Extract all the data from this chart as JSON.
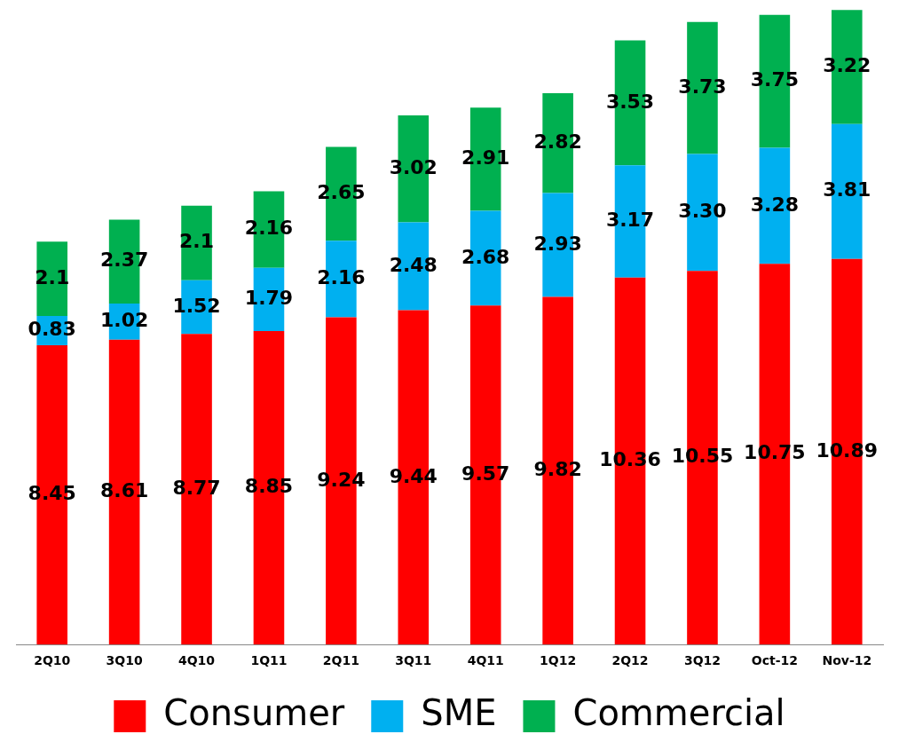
{
  "chart_data": {
    "type": "bar",
    "stacked": true,
    "legend": "bottom",
    "grid": false,
    "categories": [
      "2Q10",
      "3Q10",
      "4Q10",
      "1Q11",
      "2Q11",
      "3Q11",
      "4Q11",
      "1Q12",
      "2Q12",
      "3Q12",
      "Oct-12",
      "Nov-12"
    ],
    "series": [
      {
        "name": "Consumer",
        "color": "#ff0000",
        "values": [
          8.45,
          8.61,
          8.77,
          8.85,
          9.24,
          9.44,
          9.57,
          9.82,
          10.36,
          10.55,
          10.75,
          10.89
        ],
        "value_labels": [
          "8.45",
          "8.61",
          "8.77",
          "8.85",
          "9.24",
          "9.44",
          "9.57",
          "9.82",
          "10.36",
          "10.55",
          "10.75",
          "10.89"
        ]
      },
      {
        "name": "SME",
        "color": "#00b0f0",
        "values": [
          0.83,
          1.02,
          1.52,
          1.79,
          2.16,
          2.48,
          2.68,
          2.93,
          3.17,
          3.3,
          3.28,
          3.81
        ],
        "value_labels": [
          "0.83",
          "1.02",
          "1.52",
          "1.79",
          "2.16",
          "2.48",
          "2.68",
          "2.93",
          "3.17",
          "3.30",
          "3.28",
          "3.81"
        ]
      },
      {
        "name": "Commercial",
        "color": "#00b050",
        "values": [
          2.1,
          2.37,
          2.1,
          2.16,
          2.65,
          3.02,
          2.91,
          2.82,
          3.53,
          3.73,
          3.75,
          3.22
        ],
        "value_labels": [
          "2.1",
          "2.37",
          "2.1",
          "2.16",
          "2.65",
          "3.02",
          "2.91",
          "2.82",
          "3.53",
          "3.73",
          "3.75",
          "3.22"
        ]
      }
    ]
  }
}
